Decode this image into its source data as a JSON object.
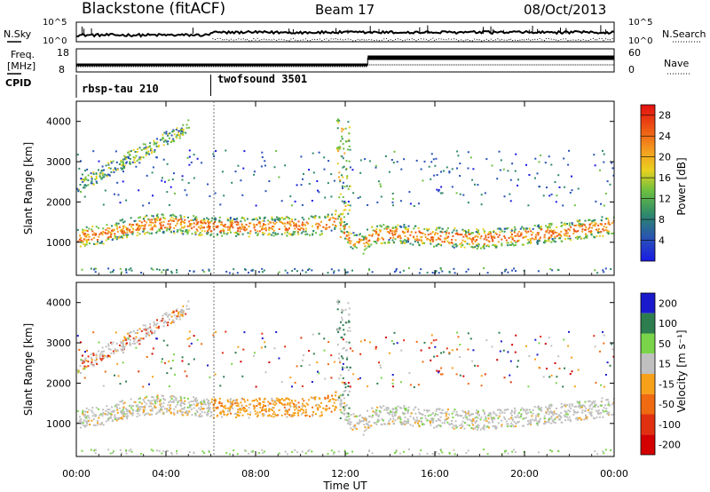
{
  "header": {
    "station": "Blackstone (fitACF)",
    "beam": "Beam 17",
    "date": "08/Oct/2013"
  },
  "top_panels": {
    "nsky_label": "N.Sky",
    "nsky_ticks": [
      "10^5",
      "10^0"
    ],
    "nsearch_label": "N.Search",
    "nsearch_ticks": [
      "10^5",
      "10^0"
    ],
    "freq_label_1": "Freq.",
    "freq_label_2": "[MHz]",
    "freq_ticks": [
      "18",
      "8"
    ],
    "nave_label": "Nave",
    "nave_ticks": [
      "60",
      "0"
    ],
    "cpid_label": "CPID",
    "cpid_segments": [
      {
        "name": "rbsp-tau 210",
        "start_hour": 0
      },
      {
        "name": "twofsound 3501",
        "start_hour": 6
      }
    ],
    "freq_step_hour": 13
  },
  "chart_data": [
    {
      "type": "heatmap",
      "quantity": "Power",
      "colorbar_label": "Power [dB]",
      "colorbar_ticks": [
        "28",
        "24",
        "20",
        "16",
        "12",
        "8",
        "4"
      ],
      "colorbar_range": [
        0,
        30
      ],
      "xlabel": "Time UT",
      "ylabel": "Slant Range [km]",
      "ylim": [
        180,
        4500
      ],
      "yticks": [
        "4000",
        "3000",
        "2000",
        "1000"
      ],
      "xlim_hours": [
        0,
        24
      ],
      "xtick_labels": [
        "00:00",
        "04:00",
        "08:00",
        "12:00",
        "16:00",
        "20:00",
        "00:00"
      ],
      "scatter_band_ut_km": [
        [
          0,
          1150
        ],
        [
          1,
          1200
        ],
        [
          2,
          1350
        ],
        [
          3,
          1450
        ],
        [
          4,
          1500
        ],
        [
          5,
          1450
        ],
        [
          6,
          1400
        ],
        [
          8,
          1400
        ],
        [
          10,
          1420
        ],
        [
          11,
          1450
        ],
        [
          11.7,
          1600
        ],
        [
          12.2,
          1100
        ],
        [
          12.8,
          950
        ],
        [
          13,
          1150
        ],
        [
          14,
          1250
        ],
        [
          16,
          1150
        ],
        [
          18,
          1100
        ],
        [
          20,
          1180
        ],
        [
          22,
          1300
        ],
        [
          24,
          1450
        ]
      ]
    },
    {
      "type": "heatmap",
      "quantity": "Velocity",
      "colorbar_label": "Velocity [m s⁻¹]",
      "colorbar_ticks": [
        "200",
        "100",
        "50",
        "15",
        "-15",
        "-50",
        "-100",
        "-200"
      ],
      "colorbar_colors": [
        "#1a1acc",
        "#2e7d4f",
        "#7ad44a",
        "#c0c0c0",
        "#f7a11a",
        "#ef6a10",
        "#e03010",
        "#d40000"
      ],
      "xlabel": "Time UT",
      "ylabel": "Slant Range [km]",
      "ylim": [
        180,
        4500
      ],
      "yticks": [
        "4000",
        "3000",
        "2000",
        "1000"
      ],
      "xlim_hours": [
        0,
        24
      ],
      "xtick_labels": [
        "00:00",
        "04:00",
        "08:00",
        "12:00",
        "16:00",
        "20:00",
        "00:00"
      ]
    }
  ]
}
